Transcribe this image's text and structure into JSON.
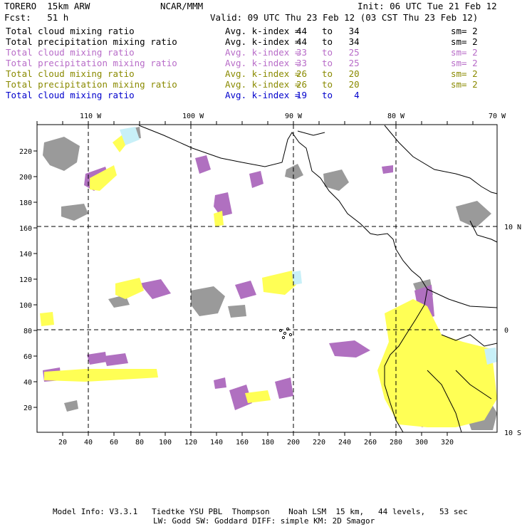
{
  "header": {
    "model": "TORERO  15km ARW",
    "org": "NCAR/MMM",
    "init": "Init: 06 UTC Tue 21 Feb 12",
    "fcst": "Fcst:   51 h",
    "valid": "Valid: 09 UTC Thu 23 Feb 12 (03 CST Thu 23 Feb 12)"
  },
  "legend": [
    {
      "field": "Total cloud mixing ratio",
      "stat": "Avg. k-index =",
      "from": "44",
      "to_word": "to",
      "to": "34",
      "sm": "sm= 2",
      "color": "#000000"
    },
    {
      "field": "Total precipitation mixing ratio",
      "stat": "Avg. k-index =",
      "from": "44",
      "to_word": "to",
      "to": "34",
      "sm": "sm= 2",
      "color": "#000000"
    },
    {
      "field": "Total cloud mixing ratio",
      "stat": "Avg. k-index =",
      "from": "33",
      "to_word": "to",
      "to": "25",
      "sm": "sm= 2",
      "color": "#b86cc8"
    },
    {
      "field": "Total precipitation mixing ratio",
      "stat": "Avg. k-index =",
      "from": "33",
      "to_word": "to",
      "to": "25",
      "sm": "sm= 2",
      "color": "#b86cc8"
    },
    {
      "field": "Total cloud mixing ratio",
      "stat": "Avg. k-index =",
      "from": "26",
      "to_word": "to",
      "to": "20",
      "sm": "sm= 2",
      "color": "#8a8a00"
    },
    {
      "field": "Total precipitation mixing ratio",
      "stat": "Avg. k-index =",
      "from": "26",
      "to_word": "to",
      "to": "20",
      "sm": "sm= 2",
      "color": "#8a8a00"
    },
    {
      "field": "Total cloud mixing ratio",
      "stat": "Avg. k-index =",
      "from": "19",
      "to_word": "to",
      "to": "4",
      "sm": "",
      "color": "#0000cc"
    }
  ],
  "map": {
    "lon_labels": [
      "110 W",
      "100 W",
      "90 W",
      "80 W",
      "70 W"
    ],
    "lat_labels": [
      "10 N",
      "0",
      "10 S"
    ],
    "x_ticks": [
      "20",
      "40",
      "60",
      "80",
      "100",
      "120",
      "140",
      "160",
      "180",
      "200",
      "220",
      "240",
      "260",
      "280",
      "300",
      "320"
    ],
    "y_ticks": [
      "20",
      "40",
      "60",
      "80",
      "100",
      "120",
      "140",
      "160",
      "180",
      "200",
      "220"
    ],
    "colors": {
      "gray": "#9a9a9a",
      "purple": "#b070c0",
      "yellow": "#ffff55",
      "cyan": "#c8f0f8"
    }
  },
  "footer": {
    "line1": "Model Info: V3.3.1   Tiedtke YSU PBL  Thompson    Noah LSM  15 km,   44 levels,   53 sec",
    "line2": "LW: Godd SW: Goddard DIFF: simple KM: 2D Smagor"
  }
}
